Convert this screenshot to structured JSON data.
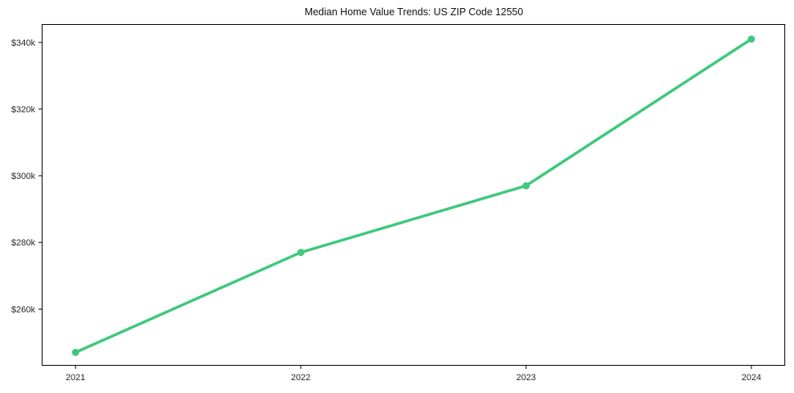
{
  "chart_data": {
    "type": "line",
    "title": "Median Home Value Trends: US ZIP Code 12550",
    "xlabel": "",
    "ylabel": "",
    "categories": [
      2021,
      2022,
      2023,
      2024
    ],
    "x_tick_labels": [
      "2021",
      "2022",
      "2023",
      "2024"
    ],
    "series": [
      {
        "name": "Median Home Value",
        "values": [
          247000,
          277000,
          297000,
          341000
        ],
        "color": "#3ec97b",
        "marker": "circle"
      }
    ],
    "y_ticks": [
      {
        "value": 260000,
        "label": "$260k"
      },
      {
        "value": 280000,
        "label": "$280k"
      },
      {
        "value": 300000,
        "label": "$300k"
      },
      {
        "value": 320000,
        "label": "$320k"
      },
      {
        "value": 340000,
        "label": "$340k"
      }
    ],
    "ylim": [
      243000,
      345500
    ],
    "x_margin_fraction": 0.15,
    "grid": false,
    "legend": null,
    "background_color": "#ffffff",
    "axis_color": "#000000",
    "tick_label_color": "#262626"
  }
}
